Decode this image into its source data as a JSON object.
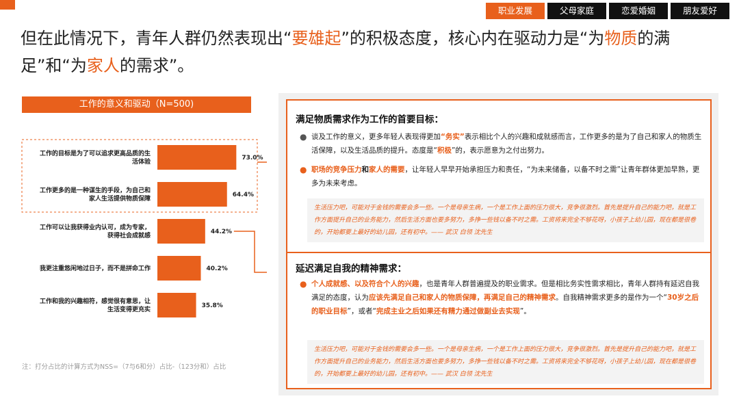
{
  "tabs": [
    {
      "label": "职业发展",
      "active": true
    },
    {
      "label": "父母家庭",
      "active": false
    },
    {
      "label": "恋爱婚姻",
      "active": false
    },
    {
      "label": "朋友爱好",
      "active": false
    }
  ],
  "headline": {
    "p1": "但在此情况下，青年人群仍然表现出“",
    "h1": "要雄起",
    "p2": "”的积极态度，核心内在驱动力是“为",
    "h2": "物质",
    "p3": "的满足”和“为",
    "h3": "家人",
    "p4": "的需求”。"
  },
  "chart_data": {
    "type": "bar",
    "orientation": "horizontal",
    "title": "工作的意义和驱动（N=500)",
    "categories": [
      "工作的目标是为了可以追求更高品质的生活体验",
      "工作更多的是一种谋生的手段，为自己和家人生活提供物质保障",
      "工作可以让我获得业内认可，成为专家，获得社会成就感",
      "我更注重悠闲地过日子，而不是拼命工作",
      "工作和我的兴趣相符，感觉很有意思，让生活变得更充实"
    ],
    "label_lines": [
      [
        "工作的目标是为了可以追求更高品质的生",
        "活体验"
      ],
      [
        "工作更多的是一种谋生的手段，为自己和",
        "家人生活提供物质保障"
      ],
      [
        "工作可以让我获得业内认可，成为专家，",
        "获得社会成就感"
      ],
      [
        "我更注重悠闲地过日子，而不是拼命工作"
      ],
      [
        "工作和我的兴趣相符，感觉很有意思，让",
        "生活变得更充实"
      ]
    ],
    "values": [
      73.0,
      64.4,
      44.2,
      40.2,
      35.8
    ],
    "value_labels": [
      "73.0%",
      "64.4%",
      "44.2%",
      "40.2%",
      "35.8%"
    ],
    "highlighted_categories": [
      0,
      1
    ],
    "xlim": [
      0,
      100
    ],
    "color": "#e8601c"
  },
  "note": "注：打分占比的计算方式为NSS=（7与6和分）占比-（123分和）占比",
  "section1": {
    "title": "满足物质需求作为工作的首要目标：",
    "b1": {
      "t1": "谈及工作的意义，更多年轻人表现得更加",
      "h1": "“务实”",
      "t2": "表示相比个人的兴趣和成就感而言，工作更多的是为了自己和家人的物质生活保障，以及生活品质的提升。态度是“",
      "h2": "积极",
      "t3": "”的，表示愿意为之付出努力。"
    },
    "b2": {
      "h1": "职场的竞争压力",
      "t1": "和",
      "h2": "家人的需要",
      "t2": "，让年轻人早早开始承担压力和责任，“为未来储备，以备不时之需”让青年群体更加早熟，更多为未来考虑。"
    },
    "quote": "生活压力吧，可能对于金钱的需要会多一些。一个是母亲生病，一个是工作上面的压力很大，竞争很激烈。首先是提升自己的能力吧，就是工作方面提升自己的业务能力，然后生活方面也要多努力，多挣一些钱以备不时之需。工资将来完全不够花呀，小孩子上幼儿园，现在都是很卷的，开始都要上最好的幼儿园，还有初中。—— 武汉 白领 沈先生"
  },
  "section2": {
    "title": "延迟满足自我的精神需求：",
    "b1": {
      "h1": "个人成就感、以及符合个人的兴趣",
      "t1": "，也是青年人群普遍提及的职业需求。但是相比务实性需求相比，青年人群持有延迟自我满足的态度，认为",
      "h2": "应该先满足自己和家人的物质保障，再满足自己的精神需求",
      "t2": "。自我精神需求更多的是作为一个“",
      "h3": "30岁之后的职业目标",
      "t3": "”，或者“",
      "h4": "完成主业之后如果还有精力通过做副业去实现",
      "t4": "”。"
    },
    "quote": "生活压力吧，可能对于金钱的需要会多一些。一个是母亲生病，一个是工作上面的压力很大，竞争很激烈。首先是提升自己的能力吧，就是工作方面提升自己的业务能力，然后生活方面也要多努力，多挣一些钱以备不时之需。工资将来完全不够花呀，小孩子上幼儿园，现在都是很卷的，开始都要上最好的幼儿园，还有初中。—— 武汉 白领 沈先生"
  },
  "colors": {
    "accent": "#e8601c",
    "tab_bg": "#111111",
    "quote_bg": "#f3f3f3"
  }
}
